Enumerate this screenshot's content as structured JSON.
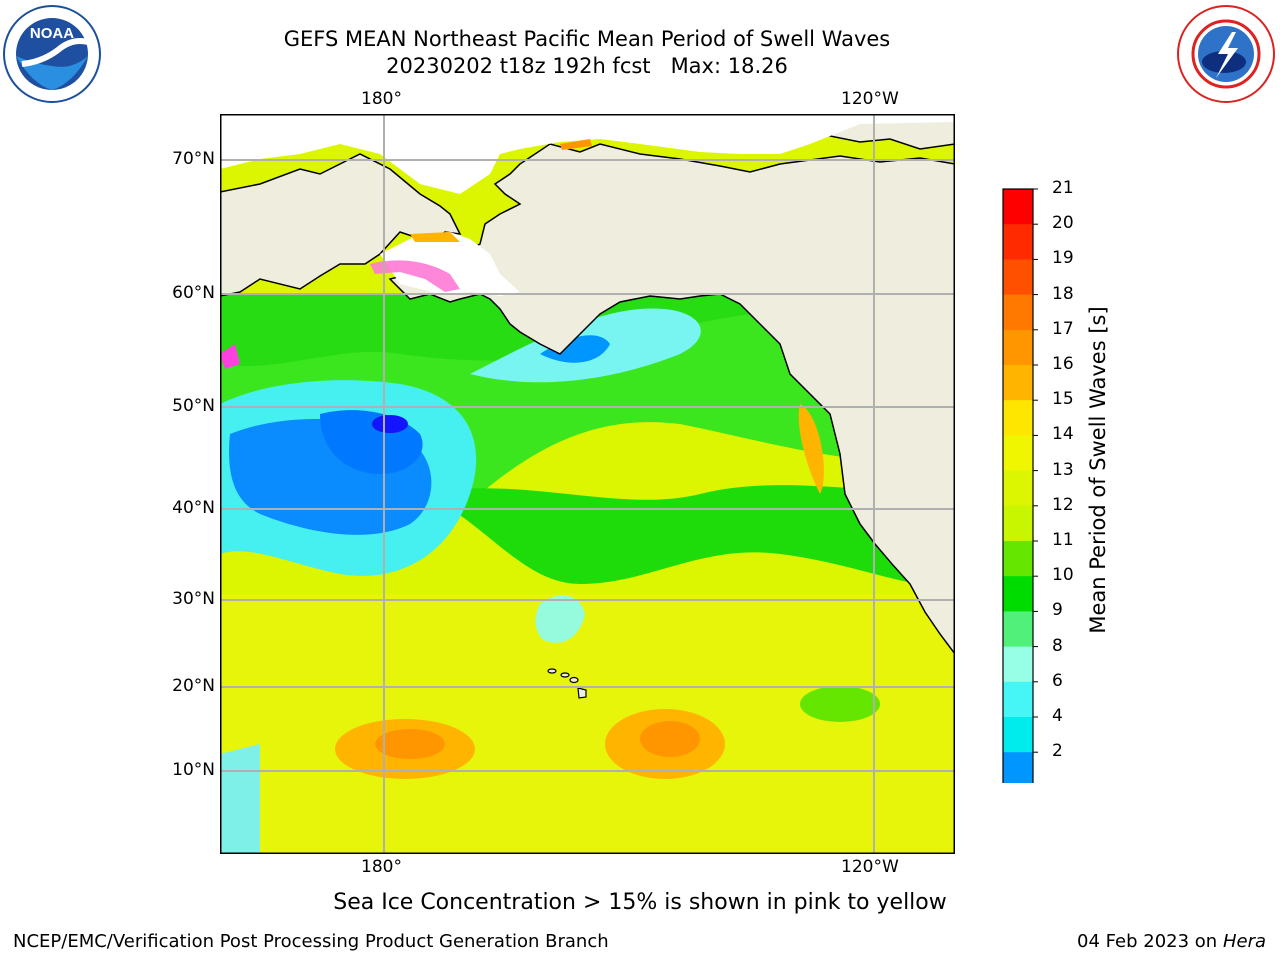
{
  "header": {
    "title_line1": "GEFS MEAN Northeast Pacific Mean Period of Swell Waves",
    "title_line2": "20230202 t18z 192h fcst   Max: 18.26"
  },
  "logos": {
    "left": "NOAA",
    "right": "NATIONAL WEATHER SERVICE"
  },
  "map": {
    "lon_labels_top": [
      "180°",
      "120°W"
    ],
    "lon_labels_bottom": [
      "180°",
      "120°W"
    ],
    "lat_labels": [
      "70°N",
      "60°N",
      "50°N",
      "40°N",
      "30°N",
      "20°N",
      "10°N"
    ],
    "land_color": "#efedde",
    "coast_color": "#000000",
    "grid_color": "#b0b0b0"
  },
  "colorbar": {
    "title": "Mean Period of Swell Waves [s]",
    "ticks": [
      "21",
      "20",
      "19",
      "18",
      "17",
      "16",
      "15",
      "14",
      "13",
      "12",
      "11",
      "10",
      "9",
      "8",
      "6",
      "4",
      "2"
    ],
    "colors_top_to_bottom": [
      "#ff0000",
      "#ff2a00",
      "#ff5000",
      "#ff7800",
      "#ff9600",
      "#ffb400",
      "#ffe600",
      "#f0f500",
      "#dcf500",
      "#c8f500",
      "#64e600",
      "#00dc00",
      "#50f07a",
      "#96ffe6",
      "#46f5f5",
      "#00ebeb",
      "#0096ff"
    ],
    "under_color": "#1414ff"
  },
  "footer": {
    "note": "Sea Ice Concentration > 15% is shown in pink to yellow",
    "left": "NCEP/EMC/Verification Post Processing Product Generation Branch",
    "right_date": "04 Feb 2023 on",
    "right_machine": "Hera"
  }
}
